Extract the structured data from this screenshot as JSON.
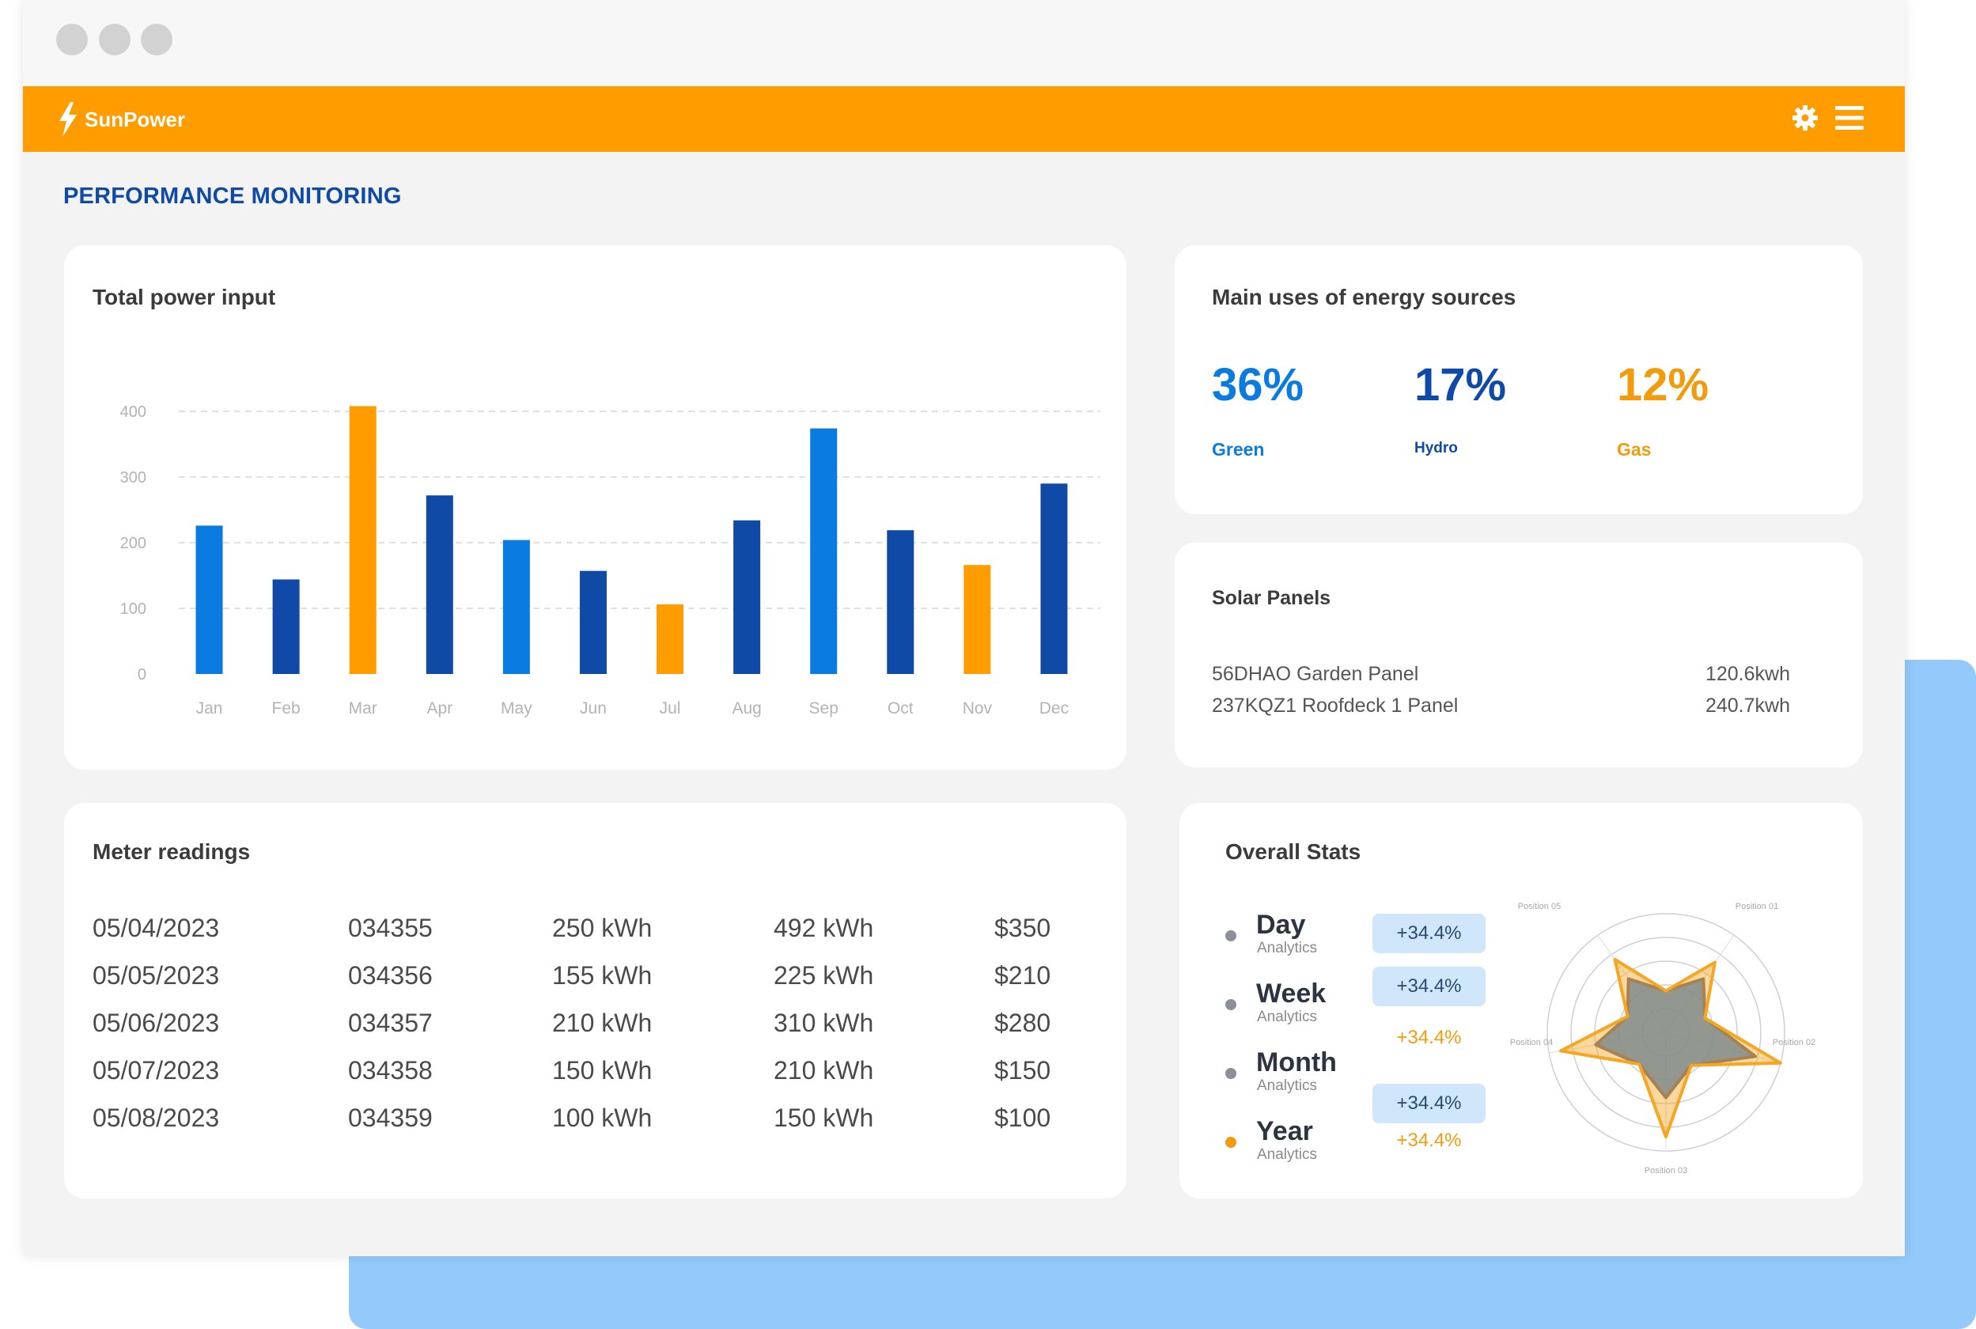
{
  "app": {
    "name": "SunPower"
  },
  "page": {
    "title": "PERFORMANCE MONITORING"
  },
  "colors": {
    "orange": "#fe9c00",
    "navy": "#0f4aa6",
    "bright_blue": "#0a7be0",
    "light_blue": "#cfe6fb"
  },
  "icons": {
    "logo": "lightning-bolt-icon",
    "settings": "gear-icon",
    "menu": "hamburger-menu-icon"
  },
  "power_card": {
    "title": "Total power input",
    "chart_data": {
      "type": "bar",
      "categories": [
        "Jan",
        "Feb",
        "Mar",
        "Apr",
        "May",
        "Jun",
        "Jul",
        "Aug",
        "Sep",
        "Oct",
        "Nov",
        "Dec"
      ],
      "values": [
        226,
        144,
        408,
        272,
        204,
        157,
        106,
        234,
        374,
        219,
        166,
        290
      ],
      "bar_colors": [
        "#0a7be0",
        "#0f4aa6",
        "#fe9c00",
        "#0f4aa6",
        "#0a7be0",
        "#0f4aa6",
        "#fe9c00",
        "#0f4aa6",
        "#0a7be0",
        "#0f4aa6",
        "#fe9c00",
        "#0f4aa6"
      ],
      "y_ticks": [
        0,
        100,
        200,
        300,
        400
      ],
      "ylim": [
        0,
        400
      ],
      "grid": true
    }
  },
  "energy_card": {
    "title": "Main uses of energy sources",
    "sources": [
      {
        "value": "36%",
        "label": "Green",
        "color": "#0a7be0"
      },
      {
        "value": "17%",
        "label": "Hydro",
        "color": "#0f4aa6"
      },
      {
        "value": "12%",
        "label": "Gas",
        "color": "#fe9c00"
      }
    ]
  },
  "solar_card": {
    "title": "Solar Panels",
    "panels": [
      {
        "name": "56DHAO Garden Panel",
        "value": "120.6kwh"
      },
      {
        "name": "237KQZ1 Roofdeck 1 Panel",
        "value": "240.7kwh"
      }
    ]
  },
  "meter_card": {
    "title": "Meter readings",
    "rows": [
      [
        "05/04/2023",
        "034355",
        "250 kWh",
        "492 kWh",
        "$350"
      ],
      [
        "05/05/2023",
        "034356",
        "155 kWh",
        "225 kWh",
        "$210"
      ],
      [
        "05/06/2023",
        "034357",
        "210 kWh",
        "310 kWh",
        "$280"
      ],
      [
        "05/07/2023",
        "034358",
        "150 kWh",
        "210 kWh",
        "$150"
      ],
      [
        "05/08/2023",
        "034359",
        "100 kWh",
        "150 kWh",
        "$100"
      ]
    ]
  },
  "stats_card": {
    "title": "Overall Stats",
    "items": [
      {
        "label": "Day",
        "sub": "Analytics",
        "change": "+34.4%",
        "dot_color": "#8a8f99",
        "highlight": true
      },
      {
        "label": "Week",
        "sub": "Analytics",
        "change": "+34.4%",
        "dot_color": "#8a8f99",
        "highlight": true
      },
      {
        "label": "Month",
        "sub": "Analytics",
        "change": "+34.4%",
        "dot_color": "#8a8f99",
        "highlight": false
      },
      {
        "label": "Year",
        "sub": "Analytics",
        "change": "+34.4%",
        "dot_color": "#f29b0d",
        "highlight": false
      }
    ],
    "extra_badge": "+34.4%",
    "chart_data": {
      "type": "radar",
      "axes": [
        "Position 01",
        "Position 02",
        "Position 03",
        "Position 04",
        "Position 05"
      ],
      "series": [
        {
          "values": [
            0.55,
            0.78,
            0.55,
            0.6,
            0.55
          ],
          "color": "#2176e6"
        },
        {
          "values": [
            0.72,
            1.0,
            0.88,
            0.9,
            0.75
          ],
          "color": "#f5a623"
        }
      ]
    }
  }
}
